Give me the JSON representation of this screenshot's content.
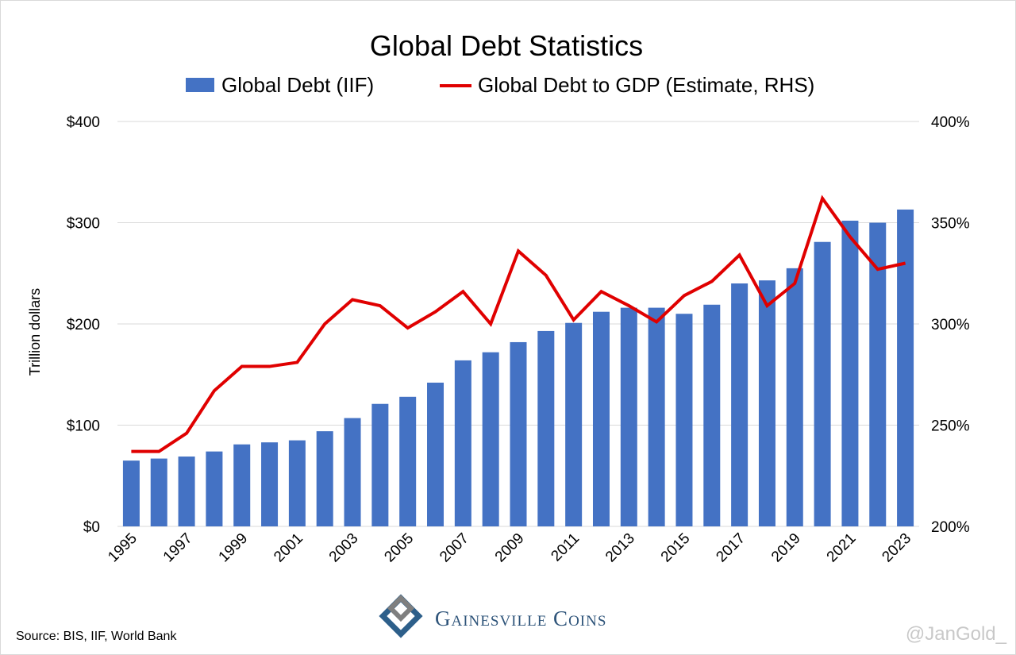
{
  "chart_data": {
    "type": "bar+line",
    "title": "Global Debt Statistics",
    "ylabel": "Trillion dollars",
    "ylim": [
      0,
      400
    ],
    "y2lim": [
      200,
      400
    ],
    "yticks": [
      "$0",
      "$100",
      "$200",
      "$300",
      "$400"
    ],
    "y2ticks": [
      "200%",
      "250%",
      "300%",
      "350%",
      "400%"
    ],
    "grid": true,
    "legend": "top",
    "categories": [
      1995,
      1996,
      1997,
      1998,
      1999,
      2000,
      2001,
      2002,
      2003,
      2004,
      2005,
      2006,
      2007,
      2008,
      2009,
      2010,
      2011,
      2012,
      2013,
      2014,
      2015,
      2016,
      2017,
      2018,
      2019,
      2020,
      2021,
      2022,
      2023
    ],
    "xtick_labels": [
      "1995",
      "1997",
      "1999",
      "2001",
      "2003",
      "2005",
      "2007",
      "2009",
      "2011",
      "2013",
      "2015",
      "2017",
      "2019",
      "2021",
      "2023"
    ],
    "series": [
      {
        "name": "Global Debt (IIF)",
        "type": "bar",
        "axis": "left",
        "color": "#4472c4",
        "values": [
          65,
          67,
          69,
          74,
          81,
          83,
          85,
          94,
          107,
          121,
          128,
          142,
          164,
          172,
          182,
          193,
          201,
          212,
          216,
          216,
          210,
          219,
          240,
          243,
          255,
          281,
          302,
          300,
          313
        ]
      },
      {
        "name": "Global Debt to GDP (Estimate, RHS)",
        "type": "line",
        "axis": "right",
        "color": "#e00000",
        "values": [
          237,
          237,
          246,
          267,
          279,
          279,
          281,
          300,
          312,
          309,
          298,
          306,
          316,
          300,
          336,
          324,
          302,
          316,
          309,
          301,
          314,
          321,
          334,
          309,
          320,
          362,
          343,
          327,
          330
        ]
      }
    ]
  },
  "footer": {
    "source": "Source: BIS, IIF, World Bank",
    "logo_text": "Gainesville Coins",
    "watermark": "@JanGold_"
  }
}
